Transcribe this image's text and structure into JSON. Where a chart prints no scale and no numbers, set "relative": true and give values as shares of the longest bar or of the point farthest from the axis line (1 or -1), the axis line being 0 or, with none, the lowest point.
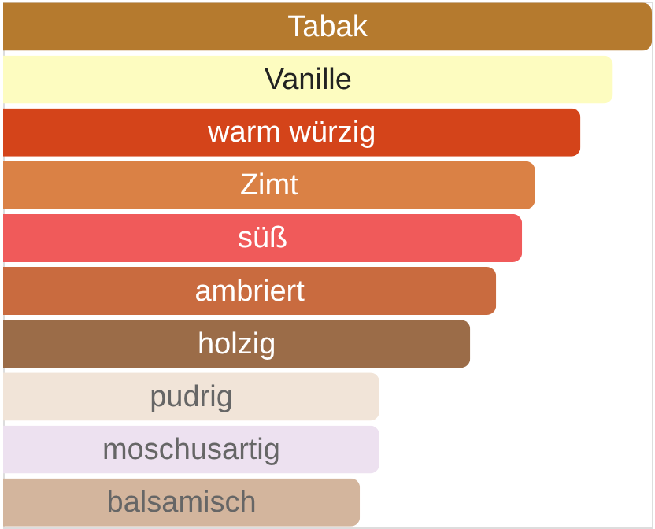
{
  "chart_data": {
    "type": "bar",
    "orientation": "horizontal",
    "relative": true,
    "categories": [
      "Tabak",
      "Vanille",
      "warm würzig",
      "Zimt",
      "süß",
      "ambriert",
      "holzig",
      "pudrig",
      "moschusartig",
      "balsamisch"
    ],
    "values": [
      1,
      0.94,
      0.89,
      0.82,
      0.8,
      0.76,
      0.72,
      0.58,
      0.58,
      0.55
    ],
    "colors": [
      "#b57a2e",
      "#fdfcc0",
      "#d4441a",
      "#da8145",
      "#f05a5a",
      "#c96b3f",
      "#9b6c48",
      "#f1e4d8",
      "#ede1f0",
      "#d3b59d"
    ]
  }
}
